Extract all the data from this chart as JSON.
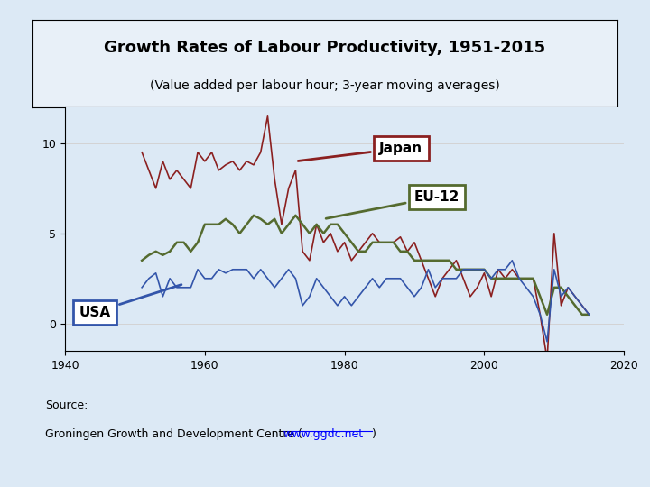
{
  "title": "Growth Rates of Labour Productivity, 1951-2015",
  "subtitle": "(Value added per labour hour; 3-year moving averages)",
  "source_line1": "Source:",
  "source_line2_pre": "Groningen Growth and Development Centre (",
  "source_url": "www.ggdc.net",
  "source_line2_post": ")",
  "xlim": [
    1940,
    2020
  ],
  "ylim": [
    -1.5,
    12
  ],
  "xticks": [
    1940,
    1960,
    1980,
    2000,
    2020
  ],
  "yticks": [
    0,
    5,
    10
  ],
  "background_outer": "#dce9f5",
  "background_title": "#e8f0f8",
  "background_plot": "#dce9f5",
  "japan_color": "#8B2020",
  "eu12_color": "#556B2F",
  "usa_color": "#3355AA",
  "japan_label": "Japan",
  "eu12_label": "EU-12",
  "usa_label": "USA",
  "japan_years": [
    1951,
    1952,
    1953,
    1954,
    1955,
    1956,
    1957,
    1958,
    1959,
    1960,
    1961,
    1962,
    1963,
    1964,
    1965,
    1966,
    1967,
    1968,
    1969,
    1970,
    1971,
    1972,
    1973,
    1974,
    1975,
    1976,
    1977,
    1978,
    1979,
    1980,
    1981,
    1982,
    1983,
    1984,
    1985,
    1986,
    1987,
    1988,
    1989,
    1990,
    1991,
    1992,
    1993,
    1994,
    1995,
    1996,
    1997,
    1998,
    1999,
    2000,
    2001,
    2002,
    2003,
    2004,
    2005,
    2006,
    2007,
    2008,
    2009,
    2010,
    2011,
    2012,
    2013,
    2014,
    2015
  ],
  "japan_values": [
    9.5,
    8.5,
    7.5,
    9.0,
    8.0,
    8.5,
    8.0,
    7.5,
    9.5,
    9.0,
    9.5,
    8.5,
    8.8,
    9.0,
    8.5,
    9.0,
    8.8,
    9.5,
    11.5,
    8.0,
    5.5,
    7.5,
    8.5,
    4.0,
    3.5,
    5.5,
    4.5,
    5.0,
    4.0,
    4.5,
    3.5,
    4.0,
    4.5,
    5.0,
    4.5,
    4.5,
    4.5,
    4.8,
    4.0,
    4.5,
    3.5,
    2.5,
    1.5,
    2.5,
    3.0,
    3.5,
    2.5,
    1.5,
    2.0,
    2.8,
    1.5,
    3.0,
    2.5,
    3.0,
    2.5,
    2.5,
    2.5,
    0.5,
    -2.0,
    5.0,
    1.0,
    2.0,
    1.5,
    1.0,
    0.5
  ],
  "eu12_years": [
    1951,
    1952,
    1953,
    1954,
    1955,
    1956,
    1957,
    1958,
    1959,
    1960,
    1961,
    1962,
    1963,
    1964,
    1965,
    1966,
    1967,
    1968,
    1969,
    1970,
    1971,
    1972,
    1973,
    1974,
    1975,
    1976,
    1977,
    1978,
    1979,
    1980,
    1981,
    1982,
    1983,
    1984,
    1985,
    1986,
    1987,
    1988,
    1989,
    1990,
    1991,
    1992,
    1993,
    1994,
    1995,
    1996,
    1997,
    1998,
    1999,
    2000,
    2001,
    2002,
    2003,
    2004,
    2005,
    2006,
    2007,
    2008,
    2009,
    2010,
    2011,
    2012,
    2013,
    2014,
    2015
  ],
  "eu12_values": [
    3.5,
    3.8,
    4.0,
    3.8,
    4.0,
    4.5,
    4.5,
    4.0,
    4.5,
    5.5,
    5.5,
    5.5,
    5.8,
    5.5,
    5.0,
    5.5,
    6.0,
    5.8,
    5.5,
    5.8,
    5.0,
    5.5,
    6.0,
    5.5,
    5.0,
    5.5,
    5.0,
    5.5,
    5.5,
    5.0,
    4.5,
    4.0,
    4.0,
    4.5,
    4.5,
    4.5,
    4.5,
    4.0,
    4.0,
    3.5,
    3.5,
    3.5,
    3.5,
    3.5,
    3.5,
    3.0,
    3.0,
    3.0,
    3.0,
    3.0,
    2.5,
    2.5,
    2.5,
    2.5,
    2.5,
    2.5,
    2.5,
    1.5,
    0.5,
    2.0,
    2.0,
    1.5,
    1.0,
    0.5,
    0.5
  ],
  "usa_years": [
    1951,
    1952,
    1953,
    1954,
    1955,
    1956,
    1957,
    1958,
    1959,
    1960,
    1961,
    1962,
    1963,
    1964,
    1965,
    1966,
    1967,
    1968,
    1969,
    1970,
    1971,
    1972,
    1973,
    1974,
    1975,
    1976,
    1977,
    1978,
    1979,
    1980,
    1981,
    1982,
    1983,
    1984,
    1985,
    1986,
    1987,
    1988,
    1989,
    1990,
    1991,
    1992,
    1993,
    1994,
    1995,
    1996,
    1997,
    1998,
    1999,
    2000,
    2001,
    2002,
    2003,
    2004,
    2005,
    2006,
    2007,
    2008,
    2009,
    2010,
    2011,
    2012,
    2013,
    2014,
    2015
  ],
  "usa_values": [
    2.0,
    2.5,
    2.8,
    1.5,
    2.5,
    2.0,
    2.0,
    2.0,
    3.0,
    2.5,
    2.5,
    3.0,
    2.8,
    3.0,
    3.0,
    3.0,
    2.5,
    3.0,
    2.5,
    2.0,
    2.5,
    3.0,
    2.5,
    1.0,
    1.5,
    2.5,
    2.0,
    1.5,
    1.0,
    1.5,
    1.0,
    1.5,
    2.0,
    2.5,
    2.0,
    2.5,
    2.5,
    2.5,
    2.0,
    1.5,
    2.0,
    3.0,
    2.0,
    2.5,
    2.5,
    2.5,
    3.0,
    3.0,
    3.0,
    3.0,
    2.5,
    3.0,
    3.0,
    3.5,
    2.5,
    2.0,
    1.5,
    0.5,
    -1.0,
    3.0,
    1.5,
    2.0,
    1.5,
    1.0,
    0.5
  ]
}
